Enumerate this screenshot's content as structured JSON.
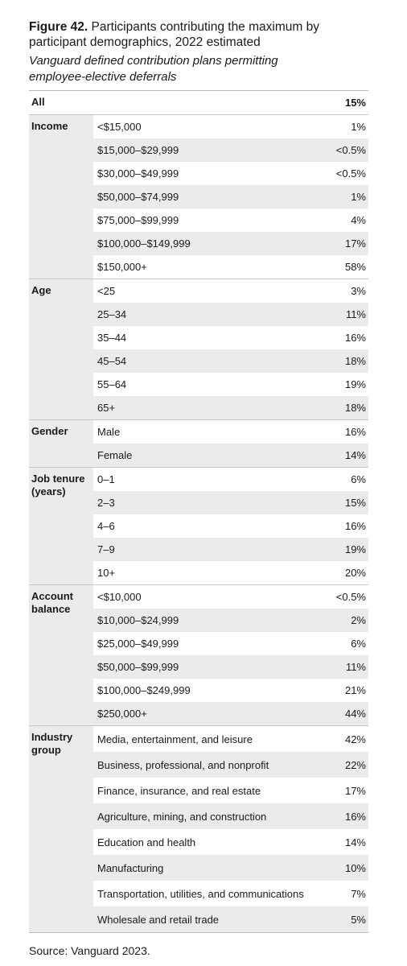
{
  "title": {
    "figure": "Figure 42.",
    "text": "Participants contributing the maximum by participant demographics, 2022 estimated"
  },
  "subtitle": "Vanguard defined contribution plans permitting employee-elective deferrals",
  "table": {
    "all": {
      "label": "All",
      "value": "15%"
    },
    "groups": [
      {
        "label": "Income",
        "rows": [
          [
            "<$15,000",
            "1%"
          ],
          [
            "$15,000–$29,999",
            "<0.5%"
          ],
          [
            "$30,000–$49,999",
            "<0.5%"
          ],
          [
            "$50,000–$74,999",
            "1%"
          ],
          [
            "$75,000–$99,999",
            "4%"
          ],
          [
            "$100,000–$149,999",
            "17%"
          ],
          [
            "$150,000+",
            "58%"
          ]
        ]
      },
      {
        "label": "Age",
        "rows": [
          [
            "<25",
            "3%"
          ],
          [
            "25–34",
            "11%"
          ],
          [
            "35–44",
            "16%"
          ],
          [
            "45–54",
            "18%"
          ],
          [
            "55–64",
            "19%"
          ],
          [
            "65+",
            "18%"
          ]
        ]
      },
      {
        "label": "Gender",
        "rows": [
          [
            "Male",
            "16%"
          ],
          [
            "Female",
            "14%"
          ]
        ]
      },
      {
        "label": "Job tenure (years)",
        "rows": [
          [
            "0–1",
            "6%"
          ],
          [
            "2–3",
            "15%"
          ],
          [
            "4–6",
            "16%"
          ],
          [
            "7–9",
            "19%"
          ],
          [
            "10+",
            "20%"
          ]
        ]
      },
      {
        "label": "Account balance",
        "rows": [
          [
            "<$10,000",
            "<0.5%"
          ],
          [
            "$10,000–$24,999",
            "2%"
          ],
          [
            "$25,000–$49,999",
            "6%"
          ],
          [
            "$50,000–$99,999",
            "11%"
          ],
          [
            "$100,000–$249,999",
            "21%"
          ],
          [
            "$250,000+",
            "44%"
          ]
        ]
      },
      {
        "label": "Industry group",
        "rows": [
          [
            "Media, entertainment, and leisure",
            "42%"
          ],
          [
            "Business, professional, and nonprofit",
            "22%"
          ],
          [
            "Finance, insurance, and real estate",
            "17%"
          ],
          [
            "Agriculture, mining, and construction",
            "16%"
          ],
          [
            "Education and health",
            "14%"
          ],
          [
            "Manufacturing",
            "10%"
          ],
          [
            "Transportation, utilities, and communications",
            "7%"
          ],
          [
            "Wholesale and retail trade",
            "5%"
          ]
        ]
      }
    ]
  },
  "source": "Source: Vanguard 2023."
}
